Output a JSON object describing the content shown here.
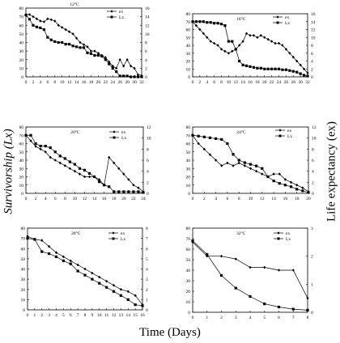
{
  "figure": {
    "y_left_label": "Survivorship (Lx)",
    "y_right_label": "Life expectancy (ex)",
    "x_label": "Time (Days)"
  },
  "chart_data": [
    {
      "type": "line",
      "title": "12°C",
      "x": [
        0,
        1,
        2,
        3,
        4,
        5,
        6,
        7,
        8,
        9,
        10,
        11,
        12,
        13,
        14,
        15,
        16,
        17,
        18,
        19,
        20,
        21,
        22,
        23,
        24,
        25,
        26,
        27,
        28,
        29,
        30,
        31,
        32
      ],
      "xticks": [
        0,
        2,
        4,
        6,
        8,
        10,
        12,
        14,
        16,
        18,
        20,
        22,
        24,
        26,
        28,
        30,
        32
      ],
      "xlim": [
        0,
        32
      ],
      "ylim_left": [
        0,
        80
      ],
      "yticks_left": [
        0,
        10,
        20,
        30,
        40,
        50,
        60,
        70,
        80
      ],
      "ylim_right": [
        0,
        16
      ],
      "yticks_right": [
        0,
        2,
        4,
        6,
        8,
        10,
        12,
        14,
        16
      ],
      "legend": [
        "ex",
        "Lx"
      ],
      "series": [
        {
          "name": "ex",
          "axis": "right",
          "marker": "diamond",
          "values": [
            14.5,
            14.5,
            14,
            13.5,
            13,
            12.8,
            13.5,
            13.3,
            13,
            12,
            11.5,
            11,
            10.5,
            10,
            9,
            8,
            7.5,
            7,
            6,
            6,
            5.5,
            5,
            4.5,
            3.5,
            2.5,
            2,
            4,
            2.5,
            4,
            2.5,
            2,
            0.5,
            0.3
          ]
        },
        {
          "name": "Lx",
          "axis": "left",
          "marker": "square",
          "values": [
            72,
            67,
            60,
            58,
            57,
            55,
            46,
            43,
            41,
            40,
            40,
            38,
            38,
            36,
            35,
            34,
            34,
            28,
            27,
            25,
            25,
            24,
            20,
            15,
            10,
            6,
            1,
            1,
            1,
            0,
            0,
            0,
            0
          ]
        }
      ]
    },
    {
      "type": "line",
      "title": "16°C",
      "x": [
        0,
        1,
        2,
        3,
        4,
        5,
        6,
        7,
        8,
        9,
        10,
        11,
        12,
        13,
        14,
        15,
        16,
        17,
        18,
        19,
        20,
        21,
        22,
        23,
        24,
        25,
        26,
        27,
        28,
        29,
        30,
        31,
        32
      ],
      "xticks": [
        0,
        2,
        4,
        6,
        8,
        10,
        12,
        14,
        16,
        18,
        20,
        22,
        24,
        26,
        28,
        30,
        32
      ],
      "xlim": [
        0,
        32
      ],
      "ylim_left": [
        0,
        80
      ],
      "yticks_left": [
        0,
        10,
        20,
        30,
        40,
        50,
        60,
        70,
        80
      ],
      "ylim_right": [
        0,
        16
      ],
      "yticks_right": [
        0,
        2,
        4,
        6,
        8,
        10,
        12,
        14,
        16
      ],
      "legend": [
        "ex",
        "Lx"
      ],
      "series": [
        {
          "name": "ex",
          "axis": "right",
          "marker": "diamond",
          "values": [
            14,
            13,
            12,
            11,
            10,
            9,
            8.5,
            8,
            7,
            6.5,
            6,
            6.5,
            7,
            8,
            9,
            11,
            10.5,
            10.5,
            10,
            10.5,
            10,
            9.5,
            9,
            8.5,
            8.5,
            8,
            7,
            6,
            5,
            4,
            3,
            2,
            1
          ]
        },
        {
          "name": "Lx",
          "axis": "left",
          "marker": "square",
          "values": [
            70,
            70,
            70,
            70,
            69,
            69,
            68,
            68,
            67,
            65,
            45,
            45,
            35,
            20,
            15,
            14,
            13,
            12,
            11,
            11,
            10,
            10,
            10,
            10,
            10,
            9,
            9,
            8,
            7,
            6,
            4,
            2,
            1
          ]
        }
      ]
    },
    {
      "type": "line",
      "title": "20°C",
      "x": [
        0,
        1,
        2,
        3,
        4,
        5,
        6,
        7,
        8,
        9,
        10,
        11,
        12,
        13,
        14,
        15,
        16,
        17,
        18,
        19,
        20,
        21,
        22,
        23,
        24
      ],
      "xticks": [
        0,
        2,
        4,
        6,
        8,
        10,
        12,
        14,
        16,
        18,
        20,
        22,
        24
      ],
      "xlim": [
        0,
        24
      ],
      "ylim_left": [
        0,
        80
      ],
      "yticks_left": [
        0,
        10,
        20,
        30,
        40,
        50,
        60,
        70,
        80
      ],
      "ylim_right": [
        0,
        12
      ],
      "yticks_right": [
        0,
        2,
        4,
        6,
        8,
        10,
        12
      ],
      "legend": [
        "ex",
        "Lx"
      ],
      "series": [
        {
          "name": "ex",
          "axis": "right",
          "marker": "diamond",
          "values": [
            10.5,
            9.5,
            8.5,
            8,
            7.5,
            6.5,
            6,
            5.5,
            5,
            4.5,
            4,
            3.5,
            3,
            3,
            3,
            2.5,
            1.5,
            6.5,
            5.5,
            4.5,
            3.5,
            2.5,
            1.5,
            1,
            0.3
          ]
        },
        {
          "name": "Lx",
          "axis": "left",
          "marker": "square",
          "values": [
            70,
            70,
            60,
            57,
            57,
            55,
            50,
            45,
            42,
            38,
            35,
            30,
            28,
            24,
            20,
            14,
            10,
            8,
            2,
            2,
            2,
            2,
            2,
            2,
            1
          ]
        }
      ]
    },
    {
      "type": "line",
      "title": "24°C",
      "x": [
        0,
        1,
        2,
        3,
        4,
        5,
        6,
        7,
        8,
        9,
        10,
        11,
        12,
        13,
        14,
        15,
        16,
        17,
        18,
        19,
        20
      ],
      "xticks": [
        0,
        2,
        4,
        6,
        8,
        10,
        12,
        14,
        16,
        18,
        20
      ],
      "xlim": [
        0,
        20
      ],
      "ylim_left": [
        0,
        80
      ],
      "yticks_left": [
        0,
        10,
        20,
        30,
        40,
        50,
        60,
        70,
        80
      ],
      "ylim_right": [
        0,
        12
      ],
      "yticks_right": [
        0,
        2,
        4,
        6,
        8,
        10,
        12
      ],
      "legend": [
        "ex",
        "Lx"
      ],
      "series": [
        {
          "name": "ex",
          "axis": "right",
          "marker": "diamond",
          "values": [
            10.5,
            9,
            8,
            7,
            6,
            5,
            5.5,
            5,
            5.5,
            5,
            4.5,
            4,
            3.5,
            3,
            3.5,
            3.5,
            2.5,
            2,
            1.5,
            1,
            0.3
          ]
        },
        {
          "name": "Lx",
          "axis": "left",
          "marker": "square",
          "values": [
            70,
            69,
            68,
            67,
            66,
            65,
            60,
            47,
            40,
            37,
            35,
            33,
            30,
            20,
            15,
            12,
            10,
            8,
            5,
            3,
            1
          ]
        }
      ]
    },
    {
      "type": "line",
      "title": "28°C",
      "x": [
        0,
        1,
        2,
        3,
        4,
        5,
        6,
        7,
        8,
        9,
        10,
        11,
        12,
        13,
        14,
        15,
        16
      ],
      "xticks": [
        0,
        1,
        2,
        3,
        4,
        5,
        6,
        7,
        8,
        9,
        10,
        11,
        12,
        13,
        14,
        15,
        16
      ],
      "xlim": [
        0,
        16
      ],
      "ylim_left": [
        0,
        80
      ],
      "yticks_left": [
        0,
        10,
        20,
        30,
        40,
        50,
        60,
        70,
        80
      ],
      "ylim_right": [
        0,
        8
      ],
      "yticks_right": [
        0,
        1,
        2,
        3,
        4,
        5,
        6,
        7,
        8
      ],
      "legend": [
        "ex",
        "Lx"
      ],
      "series": [
        {
          "name": "ex",
          "axis": "right",
          "marker": "diamond",
          "values": [
            7.2,
            6.9,
            6.8,
            6.2,
            5.6,
            5.2,
            4.8,
            4.4,
            4.0,
            3.6,
            3.2,
            2.8,
            2.4,
            2.0,
            1.8,
            1.4,
            0.5
          ]
        },
        {
          "name": "Lx",
          "axis": "left",
          "marker": "square",
          "values": [
            70,
            69,
            57,
            55,
            52,
            48,
            45,
            38,
            34,
            30,
            26,
            22,
            18,
            14,
            10,
            5,
            4
          ]
        }
      ]
    },
    {
      "type": "line",
      "title": "32°C",
      "x": [
        0,
        1,
        2,
        3,
        4,
        5,
        6,
        7,
        8
      ],
      "xticks": [
        0,
        1,
        2,
        3,
        4,
        5,
        6,
        7,
        8
      ],
      "xlim": [
        0,
        8
      ],
      "ylim_left": [
        0,
        80
      ],
      "yticks_left": [
        0,
        10,
        20,
        30,
        40,
        50,
        60,
        70,
        80
      ],
      "ylim_right": [
        0,
        3
      ],
      "yticks_right": [
        0,
        1,
        2,
        3
      ],
      "legend": [
        "ex",
        "Lx"
      ],
      "series": [
        {
          "name": "ex",
          "axis": "right",
          "marker": "diamond",
          "values": [
            2.5,
            2,
            2,
            1.9,
            1.6,
            1.6,
            1.5,
            1.5,
            0.5
          ]
        },
        {
          "name": "Lx",
          "axis": "left",
          "marker": "square",
          "values": [
            68,
            55,
            35,
            23,
            15,
            8,
            5,
            3,
            2
          ]
        }
      ]
    }
  ]
}
